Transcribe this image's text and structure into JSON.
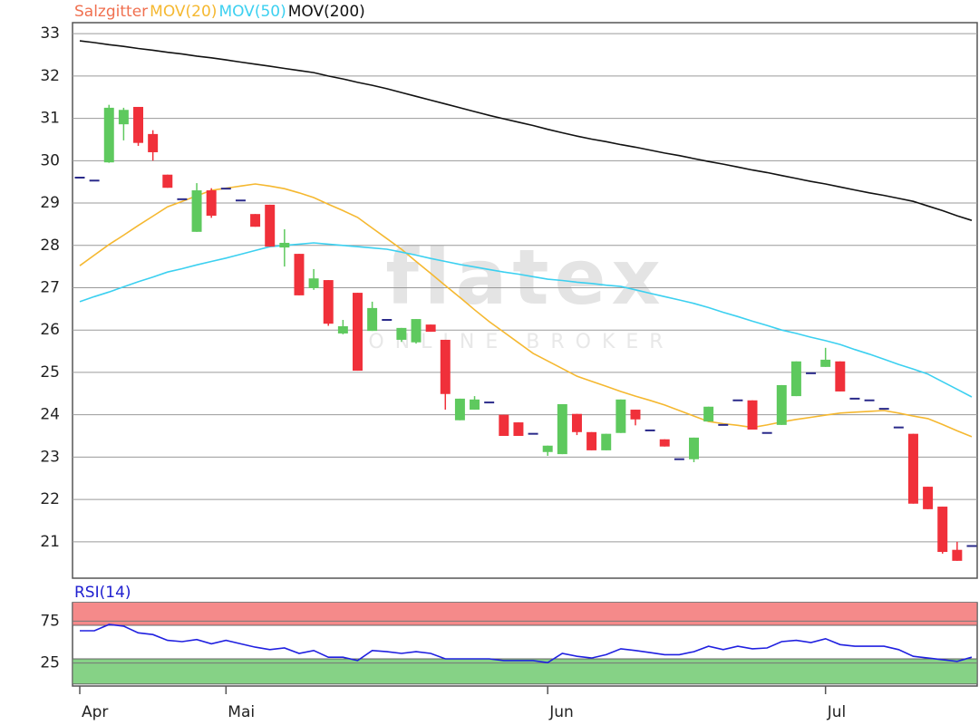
{
  "chart_data": [
    {
      "type": "candlestick",
      "name": "Salzgitter",
      "name_color": "#f07050",
      "up_color": "#5ec95e",
      "down_color": "#f0303a",
      "flat_color": "#2a2a8a",
      "categories": [
        "Apr",
        null,
        null,
        null,
        null,
        null,
        null,
        null,
        null,
        null,
        "Mai",
        null,
        null,
        null,
        null,
        null,
        null,
        null,
        null,
        null,
        null,
        null,
        null,
        null,
        null,
        null,
        null,
        null,
        null,
        null,
        null,
        null,
        "Jun",
        null,
        null,
        null,
        null,
        null,
        null,
        null,
        null,
        null,
        null,
        null,
        null,
        null,
        null,
        null,
        null,
        null,
        null,
        "Jul",
        null,
        null,
        null,
        null,
        null,
        null,
        null,
        null,
        null,
        null
      ],
      "open": [
        29.6,
        29.53,
        29.96,
        30.86,
        31.27,
        30.63,
        29.67,
        29.09,
        28.32,
        29.3,
        29.34,
        29.06,
        28.74,
        28.96,
        27.95,
        27.8,
        26.99,
        27.18,
        25.92,
        26.88,
        25.98,
        26.24,
        25.77,
        25.71,
        26.13,
        25.77,
        23.87,
        24.12,
        24.29,
        24.0,
        23.82,
        23.55,
        23.12,
        23.07,
        24.02,
        23.59,
        23.16,
        23.57,
        24.12,
        23.63,
        23.42,
        22.95,
        22.95,
        23.84,
        23.76,
        24.34,
        24.34,
        23.57,
        23.76,
        24.44,
        24.98,
        25.13,
        25.26,
        24.38,
        24.34,
        24.14,
        23.7,
        23.55,
        22.3,
        21.83,
        20.81,
        20.9
      ],
      "high": [
        29.6,
        29.53,
        31.32,
        31.25,
        31.27,
        30.72,
        29.67,
        29.09,
        29.47,
        29.35,
        29.34,
        29.06,
        28.74,
        28.96,
        28.38,
        27.8,
        27.44,
        27.18,
        26.24,
        26.88,
        26.67,
        26.24,
        26.05,
        26.26,
        26.13,
        25.77,
        24.38,
        24.44,
        24.29,
        24.0,
        23.82,
        23.55,
        23.27,
        24.25,
        24.02,
        23.59,
        23.55,
        24.36,
        24.12,
        23.63,
        23.42,
        22.95,
        23.46,
        24.19,
        23.76,
        24.34,
        24.34,
        23.57,
        24.7,
        25.26,
        24.98,
        25.58,
        25.26,
        24.38,
        24.34,
        24.14,
        23.7,
        23.55,
        22.3,
        21.83,
        21.0,
        20.9
      ],
      "low": [
        29.6,
        29.53,
        29.95,
        30.48,
        30.35,
        30.0,
        29.36,
        29.09,
        28.32,
        28.65,
        29.34,
        29.06,
        28.44,
        27.97,
        27.5,
        26.82,
        26.95,
        26.1,
        25.9,
        25.04,
        25.98,
        26.24,
        25.72,
        25.68,
        25.96,
        24.12,
        23.87,
        24.12,
        24.29,
        23.5,
        23.5,
        23.55,
        23.03,
        23.07,
        23.52,
        23.16,
        23.16,
        23.57,
        23.75,
        23.63,
        23.25,
        22.95,
        22.88,
        23.84,
        23.76,
        24.34,
        23.65,
        23.57,
        23.76,
        24.44,
        24.98,
        25.13,
        24.55,
        24.38,
        24.34,
        24.14,
        23.7,
        21.9,
        21.77,
        20.72,
        20.55,
        20.9
      ],
      "close": [
        29.6,
        29.53,
        31.25,
        31.2,
        30.42,
        30.2,
        29.36,
        29.09,
        29.3,
        28.7,
        29.34,
        29.06,
        28.44,
        27.97,
        28.06,
        26.82,
        27.22,
        26.15,
        26.09,
        25.04,
        26.52,
        26.24,
        26.05,
        26.26,
        25.96,
        24.49,
        24.38,
        24.36,
        24.29,
        23.5,
        23.5,
        23.55,
        23.27,
        24.25,
        23.59,
        23.16,
        23.55,
        24.36,
        23.89,
        23.63,
        23.25,
        22.95,
        23.46,
        24.19,
        23.76,
        24.34,
        23.65,
        23.57,
        24.7,
        25.26,
        24.98,
        25.3,
        24.55,
        24.38,
        24.34,
        24.14,
        23.7,
        21.9,
        21.77,
        20.76,
        20.55,
        20.9
      ],
      "series": [
        {
          "name": "MOV(20)",
          "color": "#f5b830",
          "values": [
            27.52,
            27.77,
            28.02,
            28.24,
            28.47,
            28.69,
            28.91,
            29.04,
            29.17,
            29.3,
            29.35,
            29.4,
            29.45,
            29.4,
            29.34,
            29.24,
            29.13,
            28.97,
            28.82,
            28.66,
            28.41,
            28.16,
            27.91,
            27.62,
            27.34,
            27.05,
            26.77,
            26.48,
            26.2,
            25.95,
            25.7,
            25.45,
            25.27,
            25.09,
            24.91,
            24.79,
            24.67,
            24.55,
            24.44,
            24.34,
            24.23,
            24.1,
            23.97,
            23.84,
            23.79,
            23.75,
            23.7,
            23.76,
            23.83,
            23.89,
            23.94,
            23.99,
            24.04,
            24.06,
            24.08,
            24.1,
            24.04,
            23.97,
            23.91,
            23.77,
            23.62,
            23.48
          ]
        },
        {
          "name": "MOV(50)",
          "color": "#3cd0f0",
          "values": [
            26.67,
            26.79,
            26.9,
            27.02,
            27.14,
            27.25,
            27.37,
            27.45,
            27.54,
            27.62,
            27.7,
            27.79,
            27.88,
            27.97,
            28.0,
            28.03,
            28.06,
            28.03,
            28.0,
            27.97,
            27.94,
            27.91,
            27.84,
            27.77,
            27.69,
            27.62,
            27.55,
            27.49,
            27.43,
            27.37,
            27.32,
            27.26,
            27.2,
            27.17,
            27.13,
            27.1,
            27.06,
            27.03,
            26.95,
            26.87,
            26.79,
            26.71,
            26.63,
            26.53,
            26.42,
            26.32,
            26.21,
            26.11,
            26.0,
            25.92,
            25.83,
            25.75,
            25.66,
            25.54,
            25.43,
            25.31,
            25.19,
            25.08,
            24.96,
            24.78,
            24.6,
            24.42
          ]
        },
        {
          "name": "MOV(200)",
          "color": "#111111",
          "values": [
            32.83,
            32.79,
            32.74,
            32.7,
            32.65,
            32.61,
            32.56,
            32.52,
            32.47,
            32.43,
            32.38,
            32.33,
            32.28,
            32.23,
            32.18,
            32.13,
            32.08,
            32.0,
            31.93,
            31.85,
            31.78,
            31.7,
            31.61,
            31.52,
            31.43,
            31.34,
            31.25,
            31.16,
            31.07,
            30.99,
            30.91,
            30.83,
            30.74,
            30.66,
            30.58,
            30.51,
            30.45,
            30.38,
            30.32,
            30.25,
            30.18,
            30.12,
            30.05,
            29.98,
            29.92,
            29.85,
            29.78,
            29.72,
            29.65,
            29.58,
            29.51,
            29.45,
            29.38,
            29.31,
            29.24,
            29.18,
            29.11,
            29.04,
            28.93,
            28.82,
            28.7,
            28.59
          ]
        }
      ],
      "ylim": [
        20.14,
        33.26
      ],
      "yticks": [
        21,
        22,
        23,
        24,
        25,
        26,
        27,
        28,
        29,
        30,
        31,
        32,
        33
      ],
      "grid": true,
      "watermark": {
        "logo": "flatex",
        "tagline": "ONLINE BROKER"
      }
    },
    {
      "type": "line",
      "title": "RSI(14)",
      "title_color": "#2020d0",
      "series": [
        {
          "name": "RSI(14)",
          "color": "#2020e0",
          "values": [
            63.5,
            63.5,
            71,
            69,
            61,
            59,
            52,
            50.5,
            53,
            48,
            52,
            48,
            44,
            41,
            43,
            36.5,
            40,
            32,
            32,
            28,
            40,
            38.5,
            36.5,
            38.5,
            36.5,
            30,
            30,
            30,
            30,
            28,
            28,
            28,
            25.5,
            36.5,
            33,
            31,
            35,
            42,
            40,
            37.5,
            35,
            35,
            38.5,
            45,
            41,
            45,
            42,
            43,
            50.5,
            52,
            49.5,
            54,
            47,
            45,
            45,
            45,
            41,
            33,
            31,
            29,
            27,
            32
          ]
        }
      ],
      "zones": [
        {
          "from": 70,
          "to": 100,
          "color": "#f58a8a"
        },
        {
          "from": 0,
          "to": 30,
          "color": "#86d286"
        }
      ],
      "ylim": [
        -2.4,
        97
      ],
      "yticks": [
        25,
        75
      ],
      "grid": true
    }
  ]
}
